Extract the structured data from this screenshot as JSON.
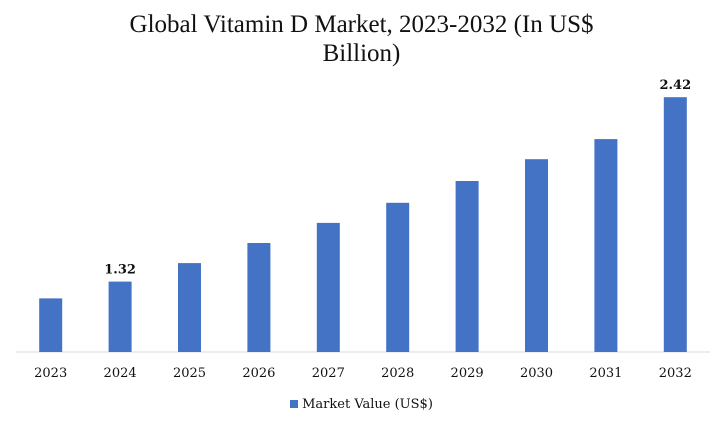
{
  "title": {
    "line1": "Global Vitamin D Market, 2023-2032 (In US$",
    "line2": "Billion)"
  },
  "colors": {
    "bar": "#4472C4",
    "axis": "#d9d9d9",
    "text": "#111111"
  },
  "chart_data": {
    "type": "bar",
    "title": "Global Vitamin D Market, 2023-2032 (In US$ Billion)",
    "categories": [
      "2023",
      "2024",
      "2025",
      "2026",
      "2027",
      "2028",
      "2029",
      "2030",
      "2031",
      "2032"
    ],
    "series": [
      {
        "name": "Market Value (US$)",
        "values": [
          1.22,
          1.32,
          1.43,
          1.55,
          1.67,
          1.79,
          1.92,
          2.05,
          2.17,
          2.42
        ]
      }
    ],
    "data_labels": [
      {
        "category": "2024",
        "text": "1.32"
      },
      {
        "category": "2032",
        "text": "2.42"
      }
    ],
    "xlabel": "",
    "ylabel": "",
    "ylim": [
      0.9,
      2.6
    ],
    "grid": false,
    "legend_position": "bottom"
  },
  "legend": {
    "label": "Market Value (US$)"
  }
}
